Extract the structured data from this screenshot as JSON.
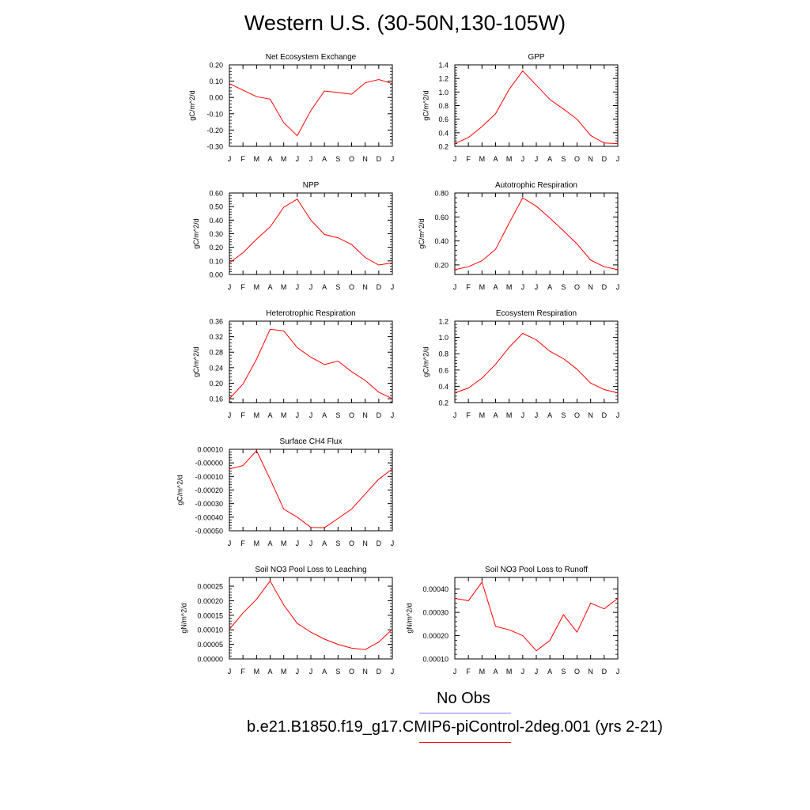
{
  "figure_title": "Western U.S. (30-50N,130-105W)",
  "legend": {
    "obs_label": "No Obs",
    "obs_color": "#7f7fff",
    "model_label": "b.e21.B1850.f19_g17.CMIP6-piControl-2deg.001 (yrs 2-21)",
    "model_color": "#ff0000"
  },
  "chart_data": [
    {
      "type": "line",
      "title": "Net Ecosystem Exchange",
      "ylabel": "gC/m^2/d",
      "categories": [
        "J",
        "F",
        "M",
        "A",
        "M",
        "J",
        "J",
        "A",
        "S",
        "O",
        "N",
        "D",
        "J"
      ],
      "ylim": [
        -0.3,
        0.2
      ],
      "yticks": [
        -0.3,
        -0.2,
        -0.1,
        0.0,
        0.1,
        0.2
      ],
      "ytick_labels": [
        "-0.30",
        "-0.20",
        "-0.10",
        "0.00",
        "0.10",
        "0.20"
      ],
      "series": [
        {
          "color": "#ff0000",
          "values": [
            0.085,
            0.045,
            0.005,
            -0.01,
            -0.155,
            -0.235,
            -0.08,
            0.04,
            0.03,
            0.02,
            0.09,
            0.11,
            0.085
          ]
        }
      ]
    },
    {
      "type": "line",
      "title": "GPP",
      "ylabel": "gC/m^2/d",
      "categories": [
        "J",
        "F",
        "M",
        "A",
        "M",
        "J",
        "J",
        "A",
        "S",
        "O",
        "N",
        "D",
        "J"
      ],
      "ylim": [
        0.2,
        1.4
      ],
      "yticks": [
        0.2,
        0.4,
        0.6,
        0.8,
        1.0,
        1.2,
        1.4
      ],
      "ytick_labels": [
        "0.2",
        "0.4",
        "0.6",
        "0.8",
        "1.0",
        "1.2",
        "1.4"
      ],
      "series": [
        {
          "color": "#ff0000",
          "values": [
            0.24,
            0.33,
            0.49,
            0.68,
            1.04,
            1.31,
            1.1,
            0.89,
            0.75,
            0.6,
            0.36,
            0.25,
            0.24
          ]
        }
      ]
    },
    {
      "type": "line",
      "title": "NPP",
      "ylabel": "gC/m^2/d",
      "categories": [
        "J",
        "F",
        "M",
        "A",
        "M",
        "J",
        "J",
        "A",
        "S",
        "O",
        "N",
        "D",
        "J"
      ],
      "ylim": [
        0.0,
        0.6
      ],
      "yticks": [
        0.0,
        0.1,
        0.2,
        0.3,
        0.4,
        0.5,
        0.6
      ],
      "ytick_labels": [
        "0.00",
        "0.10",
        "0.20",
        "0.30",
        "0.40",
        "0.50",
        "0.60"
      ],
      "series": [
        {
          "color": "#ff0000",
          "values": [
            0.085,
            0.16,
            0.26,
            0.35,
            0.495,
            0.555,
            0.4,
            0.295,
            0.27,
            0.22,
            0.125,
            0.07,
            0.085
          ]
        }
      ]
    },
    {
      "type": "line",
      "title": "Autotrophic Respiration",
      "ylabel": "gC/m^2/d",
      "categories": [
        "J",
        "F",
        "M",
        "A",
        "M",
        "J",
        "J",
        "A",
        "S",
        "O",
        "N",
        "D",
        "J"
      ],
      "ylim": [
        0.12,
        0.8
      ],
      "yticks": [
        0.2,
        0.4,
        0.6,
        0.8
      ],
      "ytick_labels": [
        "0.20",
        "0.40",
        "0.60",
        "0.80"
      ],
      "series": [
        {
          "color": "#ff0000",
          "values": [
            0.16,
            0.185,
            0.235,
            0.33,
            0.55,
            0.76,
            0.69,
            0.59,
            0.485,
            0.375,
            0.24,
            0.185,
            0.16
          ]
        }
      ]
    },
    {
      "type": "line",
      "title": "Heterotrophic Respiration",
      "ylabel": "gC/m^2/d",
      "categories": [
        "J",
        "F",
        "M",
        "A",
        "M",
        "J",
        "J",
        "A",
        "S",
        "O",
        "N",
        "D",
        "J"
      ],
      "ylim": [
        0.15,
        0.36
      ],
      "yticks": [
        0.16,
        0.2,
        0.24,
        0.28,
        0.32,
        0.36
      ],
      "ytick_labels": [
        "0.16",
        "0.20",
        "0.24",
        "0.28",
        "0.32",
        "0.36"
      ],
      "series": [
        {
          "color": "#ff0000",
          "values": [
            0.16,
            0.198,
            0.262,
            0.339,
            0.335,
            0.292,
            0.267,
            0.248,
            0.257,
            0.23,
            0.207,
            0.177,
            0.16
          ]
        }
      ]
    },
    {
      "type": "line",
      "title": "Ecosystem Respiration",
      "ylabel": "gC/m^2/d",
      "categories": [
        "J",
        "F",
        "M",
        "A",
        "M",
        "J",
        "J",
        "A",
        "S",
        "O",
        "N",
        "D",
        "J"
      ],
      "ylim": [
        0.2,
        1.2
      ],
      "yticks": [
        0.2,
        0.4,
        0.6,
        0.8,
        1.0,
        1.2
      ],
      "ytick_labels": [
        "0.2",
        "0.4",
        "0.6",
        "0.8",
        "1.0",
        "1.2"
      ],
      "series": [
        {
          "color": "#ff0000",
          "values": [
            0.32,
            0.38,
            0.5,
            0.67,
            0.88,
            1.05,
            0.97,
            0.83,
            0.74,
            0.61,
            0.44,
            0.36,
            0.32
          ]
        }
      ]
    },
    {
      "type": "line",
      "title": "Surface CH4 Flux",
      "ylabel": "gC/m^2/d",
      "categories": [
        "J",
        "F",
        "M",
        "A",
        "M",
        "J",
        "J",
        "A",
        "S",
        "O",
        "N",
        "D",
        "J"
      ],
      "ylim": [
        -0.0005,
        0.0001
      ],
      "yticks": [
        -0.0005,
        -0.0004,
        -0.0003,
        -0.0002,
        -0.0001,
        0.0,
        0.0001
      ],
      "ytick_labels": [
        "-0.00050",
        "-0.00040",
        "-0.00030",
        "-0.00020",
        "-0.00010",
        "-0.00000",
        "0.00010"
      ],
      "series": [
        {
          "color": "#ff0000",
          "values": [
            -4.5e-05,
            -2e-05,
            9e-05,
            -0.00012,
            -0.00034,
            -0.0004,
            -0.000475,
            -0.000477,
            -0.00041,
            -0.00034,
            -0.00023,
            -0.00012,
            -4.5e-05
          ]
        }
      ]
    },
    {
      "type": "line",
      "title": "Soil NO3 Pool Loss to Leaching",
      "ylabel": "gN/m^2/d",
      "categories": [
        "J",
        "F",
        "M",
        "A",
        "M",
        "J",
        "J",
        "A",
        "S",
        "O",
        "N",
        "D",
        "J"
      ],
      "ylim": [
        0.0,
        0.00028
      ],
      "yticks": [
        0.0,
        5e-05,
        0.0001,
        0.00015,
        0.0002,
        0.00025
      ],
      "ytick_labels": [
        "0.00000",
        "0.00005",
        "0.00010",
        "0.00015",
        "0.00020",
        "0.00025"
      ],
      "series": [
        {
          "color": "#ff0000",
          "values": [
            0.000102,
            0.000158,
            0.000205,
            0.000268,
            0.000185,
            0.000122,
            9.2e-05,
            6.8e-05,
            5e-05,
            3.7e-05,
            3.2e-05,
            5.8e-05,
            0.000102
          ]
        }
      ]
    },
    {
      "type": "line",
      "title": "Soil NO3 Pool Loss to Runoff",
      "ylabel": "gN/m^2/d",
      "categories": [
        "J",
        "F",
        "M",
        "A",
        "M",
        "J",
        "J",
        "A",
        "S",
        "O",
        "N",
        "D",
        "J"
      ],
      "ylim": [
        0.0001,
        0.00045
      ],
      "yticks": [
        0.0001,
        0.0002,
        0.0003,
        0.0004
      ],
      "ytick_labels": [
        "0.00010",
        "0.00020",
        "0.00030",
        "0.00040"
      ],
      "series": [
        {
          "color": "#ff0000",
          "values": [
            0.00036,
            0.00035,
            0.00043,
            0.00024,
            0.000225,
            0.0002,
            0.000135,
            0.00018,
            0.00029,
            0.000215,
            0.00034,
            0.000315,
            0.00036
          ]
        }
      ]
    }
  ]
}
